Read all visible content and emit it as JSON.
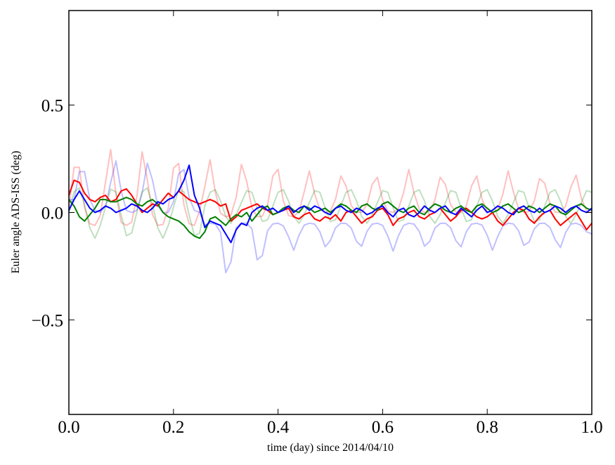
{
  "chart_data": {
    "type": "line",
    "title": "",
    "xlabel": "time (day) since 2014/04/10",
    "ylabel": "Euler angle ADS-ISS (deg)",
    "xlim": [
      0.0,
      1.0
    ],
    "ylim": [
      -0.94,
      0.94
    ],
    "grid": false,
    "x_start": 0.0,
    "x_end": 1.0,
    "xticks": [
      "0.0",
      "0.2",
      "0.4",
      "0.6",
      "0.8",
      "1.0"
    ],
    "xtick_values": [
      0.0,
      0.2,
      0.4,
      0.6,
      0.8,
      1.0
    ],
    "yticks": [
      "−0.5",
      "0.0",
      "0.5"
    ],
    "ytick_values": [
      -0.5,
      0.0,
      0.5
    ],
    "series": [
      {
        "color": "#ff0000",
        "opacity": 0.25,
        "values": [
          0.024,
          0.21,
          0.21,
          0.024,
          -0.052,
          -0.06,
          -0.014,
          0.141,
          0.293,
          0.084,
          -0.045,
          -0.06,
          -0.045,
          0.073,
          0.282,
          0.153,
          -0.011,
          -0.06,
          -0.056,
          0.02,
          0.206,
          0.229,
          0.035,
          -0.052,
          -0.06,
          0.008,
          0.12,
          0.246,
          0.095,
          -0.003,
          -0.02,
          -0.012,
          0.072,
          0.224,
          0.145,
          0.022,
          -0.02,
          -0.017,
          0.036,
          0.17,
          0.201,
          0.056,
          -0.014,
          -0.02,
          0.005,
          0.096,
          0.194,
          0.086,
          0.014,
          0,
          0.006,
          0.062,
          0.17,
          0.124,
          0.032,
          0,
          0.002,
          0.036,
          0.13,
          0.164,
          0.058,
          0.006,
          0,
          0.016,
          0.092,
          0.2,
          0.092,
          0.016,
          0,
          0.006,
          0.058,
          0.164,
          0.13,
          0.036,
          0.002,
          0,
          0.032,
          0.124,
          0.17,
          0.062,
          0.006,
          0,
          0.014,
          0.086,
          0.194,
          0.096,
          0.018,
          0,
          0.004,
          0.054,
          0.158,
          0.136,
          0.04,
          0.002,
          0,
          0.03,
          0.118,
          0.174,
          0.066,
          0.006,
          0
        ]
      },
      {
        "color": "#0000ff",
        "opacity": 0.25,
        "values": [
          0.06,
          0.06,
          0.19,
          0.19,
          0.06,
          0.01,
          0,
          0.03,
          0.14,
          0.24,
          0.1,
          0.01,
          0,
          0.01,
          0.09,
          0.23,
          0.15,
          0.03,
          0,
          0,
          0.05,
          0.18,
          0.2,
          0.07,
          0.01,
          0,
          -0.058,
          -0.05,
          -0.054,
          -0.093,
          -0.28,
          -0.23,
          -0.07,
          -0.05,
          -0.05,
          -0.076,
          -0.22,
          -0.2,
          -0.085,
          -0.053,
          -0.05,
          -0.062,
          -0.112,
          -0.176,
          -0.106,
          -0.059,
          -0.05,
          -0.054,
          -0.09,
          -0.16,
          -0.131,
          -0.071,
          -0.05,
          -0.051,
          -0.073,
          -0.135,
          -0.157,
          -0.088,
          -0.054,
          -0.05,
          -0.06,
          -0.11,
          -0.18,
          -0.11,
          -0.06,
          -0.05,
          -0.054,
          -0.088,
          -0.157,
          -0.135,
          -0.073,
          -0.051,
          -0.05,
          -0.071,
          -0.131,
          -0.16,
          -0.09,
          -0.054,
          -0.05,
          -0.059,
          -0.106,
          -0.176,
          -0.112,
          -0.062,
          -0.05,
          -0.053,
          -0.085,
          -0.153,
          -0.138,
          -0.076,
          -0.051,
          -0.05,
          -0.07,
          -0.127,
          -0.163,
          -0.093,
          -0.054,
          -0.05,
          -0.06,
          -0.09,
          -0.1
        ]
      },
      {
        "color": "#008000",
        "opacity": 0.25,
        "values": [
          0,
          0.096,
          0.114,
          0.036,
          -0.072,
          -0.12,
          -0.06,
          0.024,
          0.108,
          0.096,
          -0.012,
          -0.108,
          -0.096,
          0,
          0.096,
          0.114,
          0.036,
          -0.072,
          -0.12,
          -0.06,
          0.024,
          0.108,
          0.096,
          -0.012,
          -0.108,
          -0.096,
          0.03,
          0.094,
          0.106,
          0.054,
          -0.018,
          -0.05,
          -0.01,
          0.046,
          0.102,
          0.094,
          0.022,
          -0.042,
          -0.034,
          0.03,
          0.094,
          0.106,
          0.054,
          -0.018,
          -0.05,
          -0.01,
          0.046,
          0.102,
          0.094,
          0.022,
          -0.042,
          -0.034,
          0.03,
          0.094,
          0.106,
          0.054,
          -0.018,
          -0.05,
          -0.01,
          0.046,
          0.102,
          0.094,
          0.022,
          -0.042,
          -0.034,
          0.03,
          0.094,
          0.106,
          0.054,
          -0.018,
          -0.05,
          -0.01,
          0.046,
          0.102,
          0.094,
          0.022,
          -0.042,
          -0.034,
          0.03,
          0.094,
          0.106,
          0.054,
          -0.018,
          -0.05,
          -0.01,
          0.046,
          0.102,
          0.094,
          0.022,
          -0.042,
          -0.034,
          0.03,
          0.094,
          0.106,
          0.054,
          -0.018,
          -0.05,
          -0.01,
          0.046,
          0.102,
          0.094
        ]
      },
      {
        "color": "#ff0000",
        "opacity": 1,
        "values": [
          0.08,
          0.15,
          0.14,
          0.09,
          0.06,
          0.05,
          0.07,
          0.08,
          0.05,
          0.06,
          0.1,
          0.11,
          0.08,
          0.04,
          0.0,
          0.02,
          0.04,
          0.03,
          0.06,
          0.09,
          0.07,
          0.1,
          0.08,
          0.06,
          0.05,
          0.04,
          0.05,
          0.06,
          0.05,
          0.03,
          0.04,
          -0.04,
          -0.02,
          0.01,
          0.02,
          0.03,
          0.04,
          0.02,
          0.01,
          -0.01,
          0.0,
          0.01,
          0.02,
          -0.02,
          -0.03,
          -0.01,
          0.0,
          -0.03,
          -0.04,
          -0.02,
          -0.03,
          -0.01,
          -0.04,
          0.0,
          0.01,
          -0.02,
          -0.05,
          -0.03,
          -0.02,
          0.01,
          0.02,
          -0.01,
          -0.06,
          -0.03,
          -0.02,
          0.0,
          0.01,
          -0.02,
          -0.03,
          -0.01,
          0.0,
          0.02,
          -0.01,
          -0.04,
          -0.02,
          0.01,
          0.02,
          0.0,
          -0.02,
          -0.03,
          -0.02,
          0.0,
          -0.04,
          -0.06,
          -0.03,
          0.0,
          0.02,
          0.01,
          -0.03,
          -0.05,
          -0.02,
          0.0,
          0.01,
          -0.03,
          -0.06,
          -0.04,
          -0.02,
          0.0,
          -0.04,
          -0.08,
          -0.05
        ]
      },
      {
        "color": "#008000",
        "opacity": 1,
        "values": [
          0.06,
          0.03,
          -0.02,
          -0.04,
          -0.01,
          0.02,
          0.06,
          0.06,
          0.05,
          0.05,
          0.06,
          0.07,
          0.06,
          0.04,
          0.03,
          0.05,
          0.06,
          0.04,
          0.0,
          -0.02,
          -0.03,
          -0.04,
          -0.06,
          -0.09,
          -0.11,
          -0.12,
          -0.09,
          -0.03,
          -0.02,
          -0.04,
          -0.06,
          -0.03,
          -0.01,
          -0.02,
          0.0,
          -0.04,
          -0.01,
          0.02,
          0.03,
          -0.01,
          0.0,
          0.02,
          0.03,
          0.01,
          0.0,
          0.03,
          0.02,
          0.0,
          0.01,
          0.02,
          0.0,
          0.02,
          0.04,
          0.03,
          0.01,
          0.0,
          0.03,
          0.04,
          0.02,
          0.01,
          0.04,
          0.05,
          0.03,
          0.01,
          0.0,
          0.02,
          0.03,
          0.0,
          -0.01,
          0.02,
          0.04,
          0.03,
          0.01,
          0.0,
          0.02,
          0.03,
          0.01,
          0.0,
          0.03,
          0.04,
          0.02,
          0.0,
          0.01,
          0.03,
          0.04,
          0.02,
          0.0,
          0.01,
          0.03,
          0.02,
          0.0,
          0.02,
          0.04,
          0.03,
          0.0,
          -0.01,
          0.01,
          0.03,
          0.04,
          0.02,
          0.01
        ]
      },
      {
        "color": "#0000ff",
        "opacity": 1,
        "values": [
          0.01,
          0.06,
          0.1,
          0.06,
          0.02,
          0.0,
          0.01,
          0.03,
          0.02,
          0.0,
          0.01,
          0.02,
          0.04,
          0.03,
          0.01,
          0.0,
          0.02,
          0.05,
          0.04,
          0.06,
          0.07,
          0.1,
          0.15,
          0.22,
          0.08,
          0.02,
          -0.07,
          -0.04,
          -0.05,
          -0.06,
          -0.1,
          -0.14,
          -0.08,
          -0.05,
          -0.06,
          0.0,
          0.02,
          0.03,
          0.01,
          0.02,
          0.0,
          0.01,
          0.03,
          0.0,
          0.02,
          0.03,
          0.01,
          0.03,
          0.02,
          0.0,
          -0.01,
          0.02,
          0.03,
          0.01,
          0.0,
          0.02,
          0.01,
          -0.01,
          0.0,
          0.02,
          0.03,
          0.0,
          -0.02,
          0.01,
          0.02,
          -0.01,
          -0.02,
          0.0,
          0.03,
          0.01,
          0.0,
          0.02,
          0.03,
          0.0,
          -0.01,
          0.02,
          0.0,
          -0.02,
          0.01,
          0.03,
          0.0,
          0.01,
          0.03,
          0.02,
          0.0,
          -0.01,
          0.02,
          0.03,
          0.01,
          0.0,
          0.02,
          0.0,
          0.01,
          0.03,
          0.02,
          0.0,
          0.02,
          0.03,
          0.01,
          0.0,
          0.02
        ]
      }
    ]
  }
}
